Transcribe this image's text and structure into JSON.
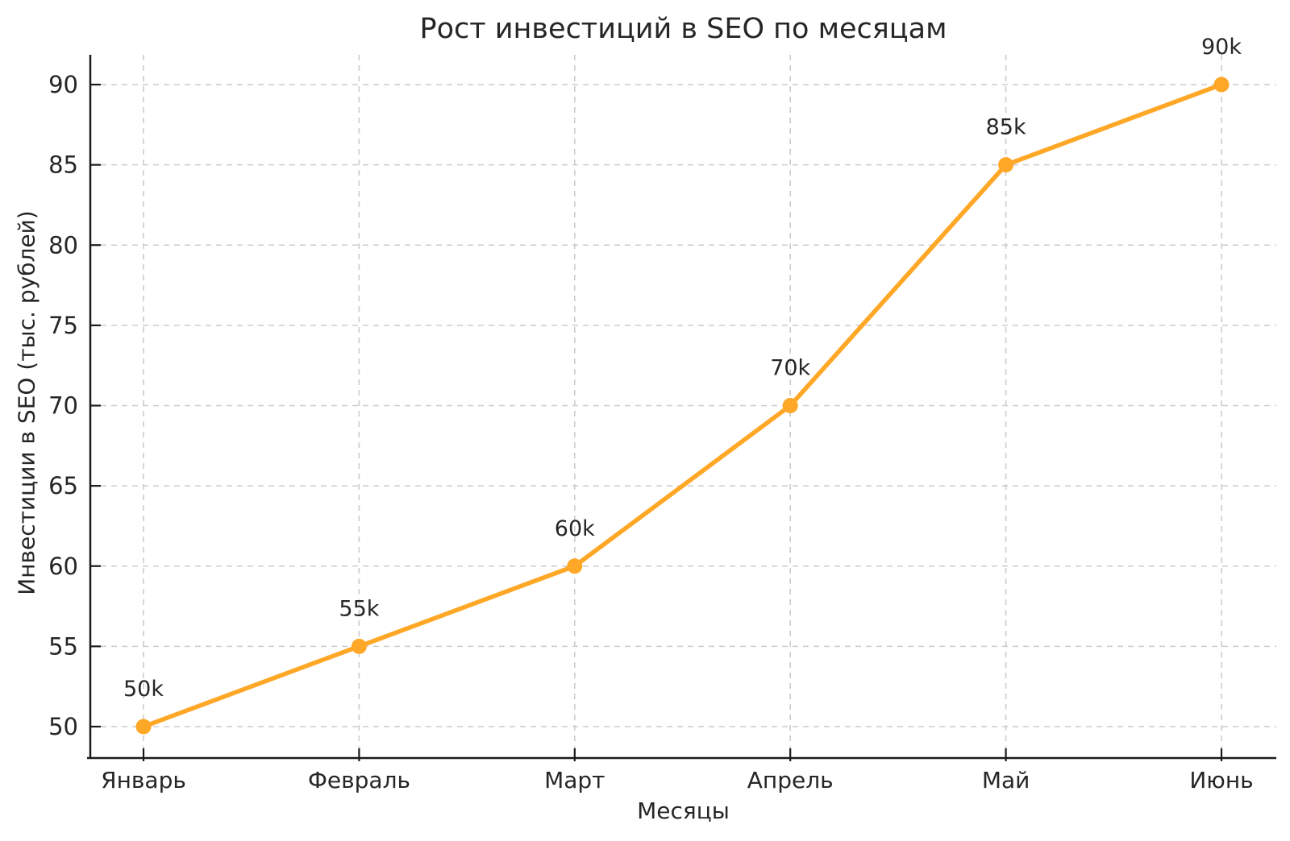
{
  "chart_data": {
    "type": "line",
    "title": "Рост инвестиций в SEO по месяцам",
    "xlabel": "Месяцы",
    "ylabel": "Инвестиции в SEO (тыс. рублей)",
    "categories": [
      "Январь",
      "Февраль",
      "Март",
      "Апрель",
      "Май",
      "Июнь"
    ],
    "series": [
      {
        "name": "Инвестиции в SEO",
        "values": [
          50,
          55,
          60,
          70,
          85,
          90
        ]
      }
    ],
    "point_labels": [
      "50k",
      "55k",
      "60k",
      "70k",
      "85k",
      "90k"
    ],
    "y_ticks": [
      50,
      55,
      60,
      65,
      70,
      75,
      80,
      85,
      90
    ],
    "ylim": [
      48,
      92
    ],
    "grid": true,
    "legend": "none",
    "colors": {
      "line": "#FFA726",
      "marker": "#FFA726",
      "text": "#262626",
      "grid": "#cccccc",
      "axis": "#1a1a1a"
    }
  }
}
